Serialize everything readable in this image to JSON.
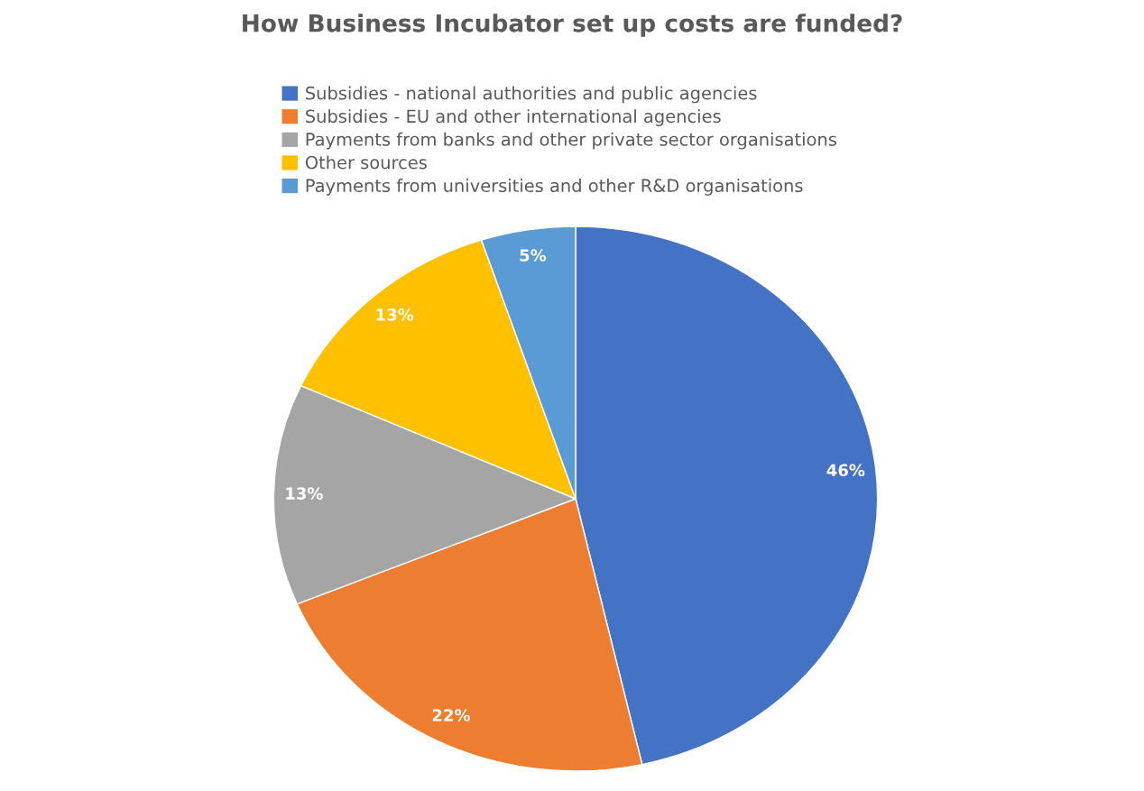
{
  "chart_data": {
    "type": "pie",
    "title": "How Business Incubator set up costs are funded?",
    "categories": [
      "Subsidies - national authorities and public agencies",
      "Subsidies - EU and other international agencies",
      "Payments from banks and other private sector organisations",
      "Other sources",
      "Payments from universities and other R&D organisations"
    ],
    "values": [
      46,
      22,
      13,
      13,
      5
    ],
    "colors": [
      "#4472c4",
      "#ed7d31",
      "#a5a5a5",
      "#ffc000",
      "#5b9bd5"
    ],
    "value_labels": [
      "46%",
      "22%",
      "13%",
      "13%",
      "5%"
    ],
    "legend": "top"
  }
}
